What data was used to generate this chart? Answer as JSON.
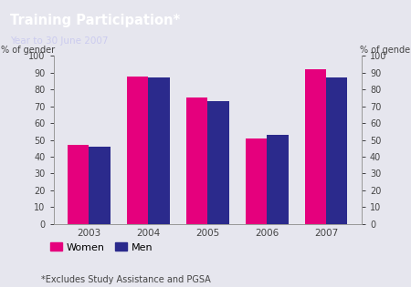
{
  "title": "Training Participation*",
  "subtitle": "Year to 30 June 2007",
  "years": [
    "2003",
    "2004",
    "2005",
    "2006",
    "2007"
  ],
  "women": [
    47,
    88,
    75,
    51,
    92
  ],
  "men": [
    46,
    87,
    73,
    53,
    87
  ],
  "women_color": "#E5007D",
  "men_color": "#2B2A8C",
  "ylabel_left": "% of gender",
  "ylabel_right": "% of gender",
  "ylim": [
    0,
    100
  ],
  "yticks": [
    0,
    10,
    20,
    30,
    40,
    50,
    60,
    70,
    80,
    90,
    100
  ],
  "title_bg_color": "#452D87",
  "plot_bg_color": "#E6E6EE",
  "title_color": "#FFFFFF",
  "subtitle_color": "#CCCCEE",
  "footnote": "*Excludes Study Assistance and PGSA",
  "legend_labels": [
    "Women",
    "Men"
  ]
}
